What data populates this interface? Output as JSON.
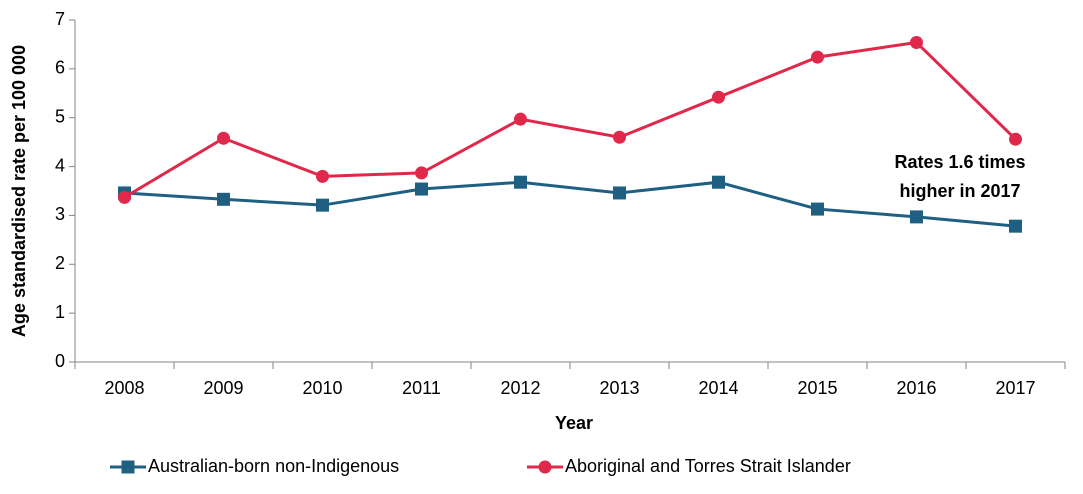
{
  "chart_data": {
    "type": "line",
    "categories": [
      "2008",
      "2009",
      "2010",
      "2011",
      "2012",
      "2013",
      "2014",
      "2015",
      "2016",
      "2017"
    ],
    "series": [
      {
        "name": "Australian-born non-Indigenous",
        "color": "#1f5f82",
        "marker": "square",
        "values": [
          3.46,
          3.33,
          3.21,
          3.54,
          3.68,
          3.46,
          3.68,
          3.13,
          2.97,
          2.78
        ]
      },
      {
        "name": "Aboriginal and Torres Strait Islander",
        "color": "#e0284a",
        "marker": "circle",
        "values": [
          3.37,
          4.58,
          3.8,
          3.87,
          4.97,
          4.6,
          5.42,
          6.24,
          6.54,
          4.56
        ]
      }
    ],
    "ylim": [
      0,
      7
    ],
    "yticks": [
      0,
      1,
      2,
      3,
      4,
      5,
      6,
      7
    ],
    "xlabel": "Year",
    "ylabel": "Age standardised rate per 100 000",
    "annotation": [
      "Rates 1.6 times",
      "higher in 2017"
    ],
    "grid": false,
    "legend": "bottom"
  }
}
